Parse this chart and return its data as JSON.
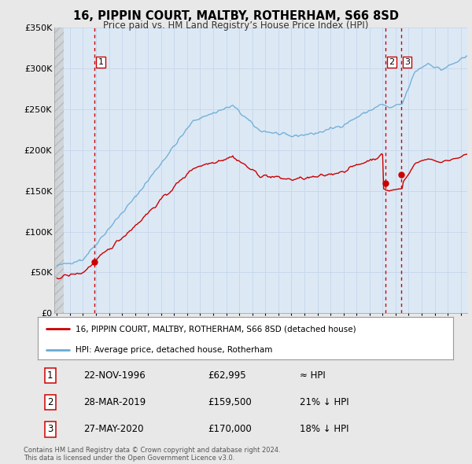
{
  "title": "16, PIPPIN COURT, MALTBY, ROTHERHAM, S66 8SD",
  "subtitle": "Price paid vs. HM Land Registry’s House Price Index (HPI)",
  "ylim": [
    0,
    350000
  ],
  "yticks": [
    0,
    50000,
    100000,
    150000,
    200000,
    250000,
    300000,
    350000
  ],
  "ytick_labels": [
    "£0",
    "£50K",
    "£100K",
    "£150K",
    "£200K",
    "£250K",
    "£300K",
    "£350K"
  ],
  "bg_color": "#e8e8e8",
  "plot_bg_color": "#dce9f5",
  "grid_color": "#c8d8ec",
  "hpi_color": "#6aaad4",
  "price_color": "#cc0000",
  "sale_marker_color": "#cc0000",
  "sales": [
    {
      "date_num": 1996.9,
      "price": 62995,
      "label": "1"
    },
    {
      "date_num": 2019.23,
      "price": 159500,
      "label": "2"
    },
    {
      "date_num": 2020.41,
      "price": 170000,
      "label": "3"
    }
  ],
  "legend_line1": "16, PIPPIN COURT, MALTBY, ROTHERHAM, S66 8SD (detached house)",
  "legend_line2": "HPI: Average price, detached house, Rotherham",
  "table_data": [
    {
      "num": "1",
      "date": "22-NOV-1996",
      "price": "£62,995",
      "hpi": "≈ HPI"
    },
    {
      "num": "2",
      "date": "28-MAR-2019",
      "price": "£159,500",
      "hpi": "21% ↓ HPI"
    },
    {
      "num": "3",
      "date": "27-MAY-2020",
      "price": "£170,000",
      "hpi": "18% ↓ HPI"
    }
  ],
  "footer": "Contains HM Land Registry data © Crown copyright and database right 2024.\nThis data is licensed under the Open Government Licence v3.0.",
  "xmin": 1993.8,
  "xmax": 2025.5
}
